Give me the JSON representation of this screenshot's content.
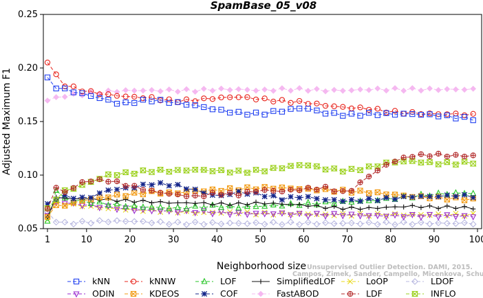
{
  "chart_data": {
    "type": "line",
    "title": "SpamBase_05_v08",
    "xlabel": "Neighborhood size",
    "ylabel": "Adjusted Maximum F1",
    "xlim": [
      1,
      100
    ],
    "ylim": [
      0.05,
      0.25
    ],
    "xticks": [
      1,
      10,
      20,
      30,
      40,
      50,
      60,
      70,
      80,
      90,
      100
    ],
    "yticks": [
      0.05,
      0.1,
      0.15,
      0.2,
      0.25
    ],
    "ytick_labels": [
      "0.05",
      "0.10",
      "0.15",
      "0.20",
      "0.25"
    ],
    "grid": false,
    "legend_position": "bottom",
    "x_step": 2,
    "series": [
      {
        "name": "kNN",
        "color": "#1f3ff0",
        "marker": "square",
        "dash": "5,3",
        "anchors": [
          [
            1,
            0.19
          ],
          [
            3,
            0.182
          ],
          [
            5,
            0.18
          ],
          [
            10,
            0.175
          ],
          [
            15,
            0.17
          ],
          [
            18,
            0.166
          ],
          [
            20,
            0.168
          ],
          [
            25,
            0.17
          ],
          [
            30,
            0.168
          ],
          [
            35,
            0.165
          ],
          [
            40,
            0.161
          ],
          [
            45,
            0.158
          ],
          [
            50,
            0.157
          ],
          [
            55,
            0.16
          ],
          [
            60,
            0.163
          ],
          [
            65,
            0.158
          ],
          [
            70,
            0.156
          ],
          [
            75,
            0.157
          ],
          [
            80,
            0.157
          ],
          [
            85,
            0.157
          ],
          [
            90,
            0.156
          ],
          [
            95,
            0.154
          ],
          [
            100,
            0.152
          ]
        ]
      },
      {
        "name": "kNNW",
        "color": "#e8241c",
        "marker": "circle",
        "dash": "5,3",
        "anchors": [
          [
            1,
            0.206
          ],
          [
            3,
            0.193
          ],
          [
            5,
            0.184
          ],
          [
            10,
            0.178
          ],
          [
            15,
            0.175
          ],
          [
            20,
            0.173
          ],
          [
            25,
            0.172
          ],
          [
            30,
            0.169
          ],
          [
            35,
            0.17
          ],
          [
            40,
            0.172
          ],
          [
            45,
            0.173
          ],
          [
            50,
            0.171
          ],
          [
            55,
            0.169
          ],
          [
            60,
            0.168
          ],
          [
            65,
            0.165
          ],
          [
            70,
            0.163
          ],
          [
            75,
            0.162
          ],
          [
            80,
            0.159
          ],
          [
            85,
            0.158
          ],
          [
            90,
            0.157
          ],
          [
            95,
            0.157
          ],
          [
            100,
            0.156
          ]
        ]
      },
      {
        "name": "LOF",
        "color": "#25c425",
        "marker": "triangle-up",
        "dash": "5,3",
        "anchors": [
          [
            1,
            0.057
          ],
          [
            3,
            0.086
          ],
          [
            5,
            0.078
          ],
          [
            10,
            0.075
          ],
          [
            15,
            0.073
          ],
          [
            20,
            0.071
          ],
          [
            25,
            0.07
          ],
          [
            30,
            0.069
          ],
          [
            35,
            0.07
          ],
          [
            40,
            0.071
          ],
          [
            45,
            0.07
          ],
          [
            50,
            0.071
          ],
          [
            55,
            0.072
          ],
          [
            60,
            0.073
          ],
          [
            65,
            0.074
          ],
          [
            70,
            0.075
          ],
          [
            75,
            0.076
          ],
          [
            80,
            0.078
          ],
          [
            85,
            0.08
          ],
          [
            90,
            0.082
          ],
          [
            95,
            0.083
          ],
          [
            100,
            0.083
          ]
        ]
      },
      {
        "name": "SimplifiedLOF",
        "color": "#111111",
        "marker": "plus",
        "dash": "",
        "anchors": [
          [
            1,
            0.06
          ],
          [
            3,
            0.08
          ],
          [
            5,
            0.078
          ],
          [
            10,
            0.078
          ],
          [
            15,
            0.077
          ],
          [
            20,
            0.076
          ],
          [
            25,
            0.075
          ],
          [
            30,
            0.074
          ],
          [
            35,
            0.074
          ],
          [
            40,
            0.073
          ],
          [
            45,
            0.073
          ],
          [
            50,
            0.074
          ],
          [
            55,
            0.073
          ],
          [
            60,
            0.072
          ],
          [
            65,
            0.07
          ],
          [
            70,
            0.069
          ],
          [
            75,
            0.069
          ],
          [
            80,
            0.07
          ],
          [
            85,
            0.071
          ],
          [
            90,
            0.07
          ],
          [
            95,
            0.07
          ],
          [
            100,
            0.069
          ]
        ]
      },
      {
        "name": "LoOP",
        "color": "#e8d81a",
        "marker": "x",
        "dash": "5,3",
        "anchors": [
          [
            1,
            0.06
          ],
          [
            3,
            0.075
          ],
          [
            5,
            0.073
          ],
          [
            10,
            0.071
          ],
          [
            15,
            0.069
          ],
          [
            20,
            0.068
          ],
          [
            25,
            0.067
          ],
          [
            30,
            0.066
          ],
          [
            35,
            0.065
          ],
          [
            40,
            0.065
          ],
          [
            45,
            0.065
          ],
          [
            50,
            0.064
          ],
          [
            55,
            0.064
          ],
          [
            60,
            0.064
          ],
          [
            65,
            0.063
          ],
          [
            70,
            0.063
          ],
          [
            75,
            0.063
          ],
          [
            80,
            0.063
          ],
          [
            85,
            0.063
          ],
          [
            90,
            0.063
          ],
          [
            95,
            0.063
          ],
          [
            100,
            0.063
          ]
        ]
      },
      {
        "name": "LDOF",
        "color": "#b8b8e0",
        "marker": "diamond",
        "dash": "5,3",
        "anchors": [
          [
            1,
            0.065
          ],
          [
            3,
            0.057
          ],
          [
            5,
            0.055
          ],
          [
            10,
            0.056
          ],
          [
            15,
            0.057
          ],
          [
            20,
            0.057
          ],
          [
            25,
            0.056
          ],
          [
            30,
            0.055
          ],
          [
            35,
            0.055
          ],
          [
            40,
            0.055
          ],
          [
            45,
            0.055
          ],
          [
            50,
            0.055
          ],
          [
            55,
            0.055
          ],
          [
            60,
            0.055
          ],
          [
            65,
            0.055
          ],
          [
            70,
            0.055
          ],
          [
            75,
            0.055
          ],
          [
            80,
            0.055
          ],
          [
            85,
            0.055
          ],
          [
            90,
            0.055
          ],
          [
            95,
            0.055
          ],
          [
            100,
            0.055
          ]
        ]
      },
      {
        "name": "ODIN",
        "color": "#9a2ad0",
        "marker": "triangle-down",
        "dash": "5,3",
        "anchors": [
          [
            1,
            0.062
          ],
          [
            3,
            0.075
          ],
          [
            5,
            0.074
          ],
          [
            10,
            0.072
          ],
          [
            15,
            0.07
          ],
          [
            20,
            0.068
          ],
          [
            25,
            0.067
          ],
          [
            30,
            0.066
          ],
          [
            35,
            0.066
          ],
          [
            40,
            0.065
          ],
          [
            45,
            0.064
          ],
          [
            50,
            0.064
          ],
          [
            55,
            0.064
          ],
          [
            60,
            0.063
          ],
          [
            65,
            0.063
          ],
          [
            70,
            0.063
          ],
          [
            75,
            0.062
          ],
          [
            80,
            0.062
          ],
          [
            85,
            0.062
          ],
          [
            90,
            0.062
          ],
          [
            95,
            0.062
          ],
          [
            100,
            0.061
          ]
        ]
      },
      {
        "name": "KDEOS",
        "color": "#f29a12",
        "marker": "square-x",
        "dash": "5,3",
        "anchors": [
          [
            1,
            0.062
          ],
          [
            3,
            0.071
          ],
          [
            5,
            0.072
          ],
          [
            10,
            0.077
          ],
          [
            15,
            0.08
          ],
          [
            20,
            0.082
          ],
          [
            25,
            0.084
          ],
          [
            30,
            0.083
          ],
          [
            35,
            0.085
          ],
          [
            40,
            0.086
          ],
          [
            45,
            0.087
          ],
          [
            50,
            0.088
          ],
          [
            55,
            0.088
          ],
          [
            60,
            0.087
          ],
          [
            65,
            0.086
          ],
          [
            70,
            0.085
          ],
          [
            75,
            0.084
          ],
          [
            80,
            0.082
          ],
          [
            85,
            0.08
          ],
          [
            90,
            0.079
          ],
          [
            95,
            0.078
          ],
          [
            100,
            0.077
          ]
        ]
      },
      {
        "name": "COF",
        "color": "#15268a",
        "marker": "star",
        "dash": "5,3",
        "anchors": [
          [
            1,
            0.072
          ],
          [
            3,
            0.078
          ],
          [
            5,
            0.08
          ],
          [
            10,
            0.078
          ],
          [
            15,
            0.086
          ],
          [
            20,
            0.088
          ],
          [
            25,
            0.092
          ],
          [
            30,
            0.091
          ],
          [
            35,
            0.086
          ],
          [
            40,
            0.08
          ],
          [
            45,
            0.084
          ],
          [
            50,
            0.082
          ],
          [
            55,
            0.078
          ],
          [
            60,
            0.08
          ],
          [
            65,
            0.077
          ],
          [
            70,
            0.076
          ],
          [
            75,
            0.077
          ],
          [
            80,
            0.078
          ],
          [
            85,
            0.08
          ],
          [
            90,
            0.08
          ],
          [
            95,
            0.081
          ],
          [
            100,
            0.08
          ]
        ]
      },
      {
        "name": "FastABOD",
        "color": "#f5b8f0",
        "marker": "diamond-filled",
        "dash": "5,3",
        "anchors": [
          [
            1,
            0.17
          ],
          [
            5,
            0.174
          ],
          [
            10,
            0.176
          ],
          [
            15,
            0.178
          ],
          [
            20,
            0.179
          ],
          [
            25,
            0.179
          ],
          [
            30,
            0.179
          ],
          [
            35,
            0.179
          ],
          [
            40,
            0.18
          ],
          [
            45,
            0.18
          ],
          [
            50,
            0.179
          ],
          [
            55,
            0.18
          ],
          [
            60,
            0.18
          ],
          [
            65,
            0.179
          ],
          [
            70,
            0.179
          ],
          [
            75,
            0.18
          ],
          [
            80,
            0.18
          ],
          [
            85,
            0.18
          ],
          [
            90,
            0.18
          ],
          [
            95,
            0.18
          ],
          [
            100,
            0.18
          ]
        ]
      },
      {
        "name": "LDF",
        "color": "#b22a2a",
        "marker": "circle-plus",
        "dash": "5,3",
        "anchors": [
          [
            1,
            0.069
          ],
          [
            3,
            0.088
          ],
          [
            5,
            0.084
          ],
          [
            10,
            0.095
          ],
          [
            15,
            0.095
          ],
          [
            20,
            0.09
          ],
          [
            25,
            0.085
          ],
          [
            30,
            0.082
          ],
          [
            35,
            0.08
          ],
          [
            40,
            0.083
          ],
          [
            45,
            0.082
          ],
          [
            50,
            0.086
          ],
          [
            55,
            0.085
          ],
          [
            60,
            0.087
          ],
          [
            65,
            0.088
          ],
          [
            70,
            0.083
          ],
          [
            75,
            0.099
          ],
          [
            80,
            0.112
          ],
          [
            85,
            0.118
          ],
          [
            90,
            0.119
          ],
          [
            95,
            0.118
          ],
          [
            100,
            0.118
          ]
        ]
      },
      {
        "name": "INFLO",
        "color": "#9ad018",
        "marker": "hourglass",
        "dash": "5,3",
        "anchors": [
          [
            1,
            0.068
          ],
          [
            3,
            0.078
          ],
          [
            5,
            0.085
          ],
          [
            10,
            0.092
          ],
          [
            15,
            0.1
          ],
          [
            20,
            0.102
          ],
          [
            25,
            0.104
          ],
          [
            30,
            0.104
          ],
          [
            35,
            0.105
          ],
          [
            40,
            0.104
          ],
          [
            45,
            0.103
          ],
          [
            50,
            0.104
          ],
          [
            55,
            0.107
          ],
          [
            60,
            0.11
          ],
          [
            65,
            0.106
          ],
          [
            70,
            0.104
          ],
          [
            75,
            0.107
          ],
          [
            80,
            0.112
          ],
          [
            85,
            0.113
          ],
          [
            90,
            0.111
          ],
          [
            95,
            0.111
          ],
          [
            100,
            0.112
          ]
        ]
      }
    ]
  },
  "watermark": {
    "line1": "Unsupervised Outlier Detection. DAMI, 2015.",
    "line2": "Campos, Zimek, Sander, Campello, Micenkova, Schubert, Assent, Houle"
  }
}
